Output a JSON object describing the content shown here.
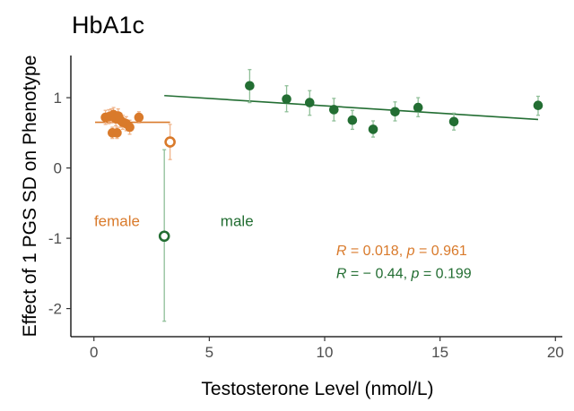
{
  "chart_data": {
    "type": "scatter",
    "title": "HbA1c",
    "xlabel": "Testosterone Level (nmol/L)",
    "ylabel": "Effect of 1 PGS SD on Phenotype",
    "xlim": [
      -1,
      20.3
    ],
    "ylim": [
      -2.4,
      1.6
    ],
    "x_ticks": [
      0,
      5,
      10,
      15,
      20
    ],
    "y_ticks": [
      -2,
      -1,
      0,
      1
    ],
    "grid": false,
    "colors": {
      "female": "#d97a2b",
      "male": "#236e33",
      "female_error": "#f0b48a",
      "male_error": "#8fbf98"
    },
    "series": [
      {
        "name": "female",
        "color": "#d97a2b",
        "label_position": [
          1.0,
          -0.75
        ],
        "points": [
          {
            "x": 0.5,
            "y": 0.72,
            "lo": 0.62,
            "hi": 0.82,
            "filled": true
          },
          {
            "x": 0.65,
            "y": 0.73,
            "lo": 0.63,
            "hi": 0.83,
            "filled": true
          },
          {
            "x": 0.75,
            "y": 0.74,
            "lo": 0.64,
            "hi": 0.84,
            "filled": true
          },
          {
            "x": 0.85,
            "y": 0.76,
            "lo": 0.66,
            "hi": 0.86,
            "filled": true
          },
          {
            "x": 0.95,
            "y": 0.7,
            "lo": 0.6,
            "hi": 0.8,
            "filled": true
          },
          {
            "x": 1.05,
            "y": 0.74,
            "lo": 0.64,
            "hi": 0.84,
            "filled": true
          },
          {
            "x": 1.15,
            "y": 0.68,
            "lo": 0.58,
            "hi": 0.78,
            "filled": true
          },
          {
            "x": 1.25,
            "y": 0.65,
            "lo": 0.55,
            "hi": 0.75,
            "filled": true
          },
          {
            "x": 1.4,
            "y": 0.63,
            "lo": 0.53,
            "hi": 0.73,
            "filled": true
          },
          {
            "x": 1.55,
            "y": 0.58,
            "lo": 0.48,
            "hi": 0.68,
            "filled": true
          },
          {
            "x": 0.8,
            "y": 0.5,
            "lo": 0.42,
            "hi": 0.58,
            "filled": true
          },
          {
            "x": 1.0,
            "y": 0.5,
            "lo": 0.42,
            "hi": 0.58,
            "filled": true
          },
          {
            "x": 1.95,
            "y": 0.72,
            "lo": 0.64,
            "hi": 0.8,
            "filled": true
          },
          {
            "x": 3.3,
            "y": 0.37,
            "lo": 0.12,
            "hi": 0.62,
            "filled": false
          }
        ],
        "fit": {
          "x": [
            0.05,
            3.3
          ],
          "y": [
            0.65,
            0.65
          ]
        }
      },
      {
        "name": "male",
        "color": "#236e33",
        "label_position": [
          6.2,
          -0.75
        ],
        "points": [
          {
            "x": 3.05,
            "y": -0.97,
            "lo": -2.18,
            "hi": 0.26,
            "filled": false
          },
          {
            "x": 6.75,
            "y": 1.17,
            "lo": 0.93,
            "hi": 1.4,
            "filled": true
          },
          {
            "x": 8.35,
            "y": 0.98,
            "lo": 0.8,
            "hi": 1.17,
            "filled": true
          },
          {
            "x": 9.35,
            "y": 0.93,
            "lo": 0.75,
            "hi": 1.1,
            "filled": true
          },
          {
            "x": 10.4,
            "y": 0.83,
            "lo": 0.67,
            "hi": 0.99,
            "filled": true
          },
          {
            "x": 11.2,
            "y": 0.68,
            "lo": 0.55,
            "hi": 0.82,
            "filled": true
          },
          {
            "x": 12.1,
            "y": 0.55,
            "lo": 0.44,
            "hi": 0.67,
            "filled": true
          },
          {
            "x": 13.05,
            "y": 0.8,
            "lo": 0.67,
            "hi": 0.94,
            "filled": true
          },
          {
            "x": 14.05,
            "y": 0.86,
            "lo": 0.73,
            "hi": 1.0,
            "filled": true
          },
          {
            "x": 15.6,
            "y": 0.66,
            "lo": 0.54,
            "hi": 0.78,
            "filled": true
          },
          {
            "x": 19.25,
            "y": 0.89,
            "lo": 0.75,
            "hi": 1.02,
            "filled": true
          }
        ],
        "fit": {
          "x": [
            3.05,
            19.25
          ],
          "y": [
            1.03,
            0.69
          ]
        }
      }
    ],
    "annotations": [
      {
        "series": "female",
        "color": "#d97a2b",
        "r_label": "R",
        "r_value": " = 0.018, ",
        "p_label": "p",
        "p_value": " = 0.961",
        "position": [
          10.5,
          -1.18
        ]
      },
      {
        "series": "male",
        "color": "#236e33",
        "r_label": "R",
        "r_value": " = − 0.44, ",
        "p_label": "p",
        "p_value": " = 0.199",
        "position": [
          10.5,
          -1.5
        ]
      }
    ]
  }
}
